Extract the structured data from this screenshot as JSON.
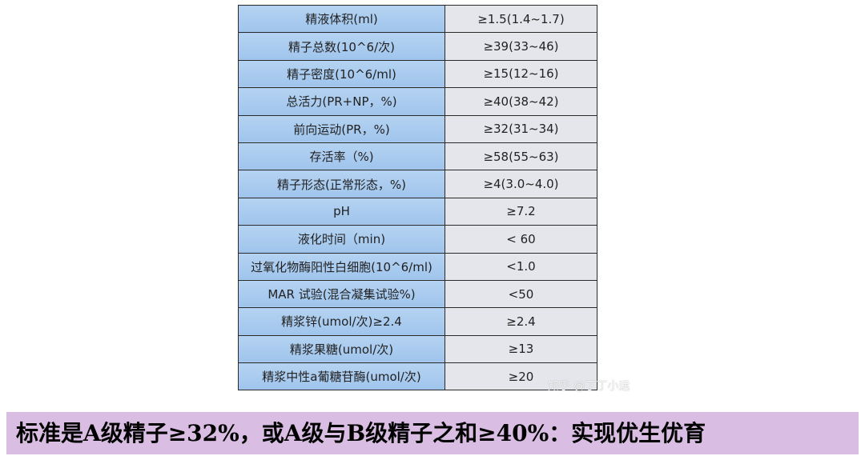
{
  "table": [
    [
      "精液体积(ml)",
      "≥1.5(1.4~1.7)"
    ],
    [
      "精子总数(10^6/次)",
      "≥39(33~46)"
    ],
    [
      "精子密度(10^6/ml)",
      "≥15(12~16)"
    ],
    [
      "总活力(PR+NP，%)",
      "≥40(38~42)"
    ],
    [
      "前向运动(PR，%)",
      "≥32(31~34)"
    ],
    [
      "存活率（%)",
      "≥58(55~63)"
    ],
    [
      "精子形态(正常形态，%)",
      "≥4(3.0~4.0)"
    ],
    [
      "pH",
      "≥7.2"
    ],
    [
      "液化时间（min)",
      "< 60"
    ],
    [
      "过氧化物酶阳性白细胞(10^6/ml)",
      "<1.0"
    ],
    [
      "MAR 试验(混合凝集试验%)",
      "<50"
    ],
    [
      "精浆锌(umol/次)≥2.4",
      "≥2.4"
    ],
    [
      "精浆果糖(umol/次)",
      "≥13"
    ],
    [
      "精浆中性a葡糖苷酶(umol/次)",
      "≥20"
    ]
  ],
  "watermark": "知乎 @丁丁小运",
  "banner": "标准是A级精子≥32%，或A级与B级精子之和≥40%：实现优生优育"
}
